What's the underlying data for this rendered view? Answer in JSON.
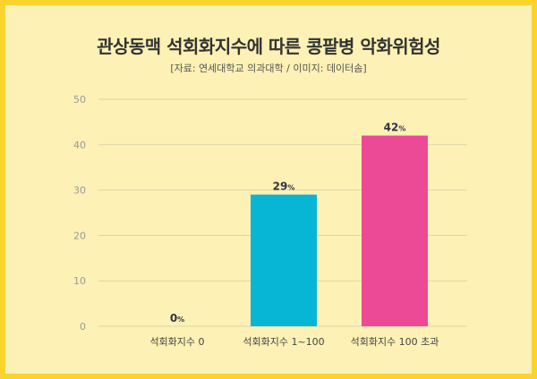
{
  "header": {
    "title": "관상동맥 석회화지수에 따른 콩팥병 악화위험성",
    "source": "[자료: 연세대학교 의과대학 / 이미지: 데이터솜]"
  },
  "colors": {
    "background": "#fdf1b5",
    "border": "#f9d42e",
    "grid": "#dcd5a8"
  },
  "chart_data": {
    "type": "bar",
    "title": "관상동맥 석회화지수에 따른 콩팥병 악화위험성",
    "categories": [
      "석회화지수 0",
      "석회화지수 1~100",
      "석회화지수 100 초과"
    ],
    "values": [
      0,
      29,
      42
    ],
    "value_suffix": "%",
    "bar_colors": [
      "#00b4d8",
      "#06b6d4",
      "#ec4a96"
    ],
    "ylim": [
      0,
      50
    ],
    "yticks": [
      0,
      10,
      20,
      30,
      40,
      50
    ],
    "grid": true,
    "legend": false
  }
}
